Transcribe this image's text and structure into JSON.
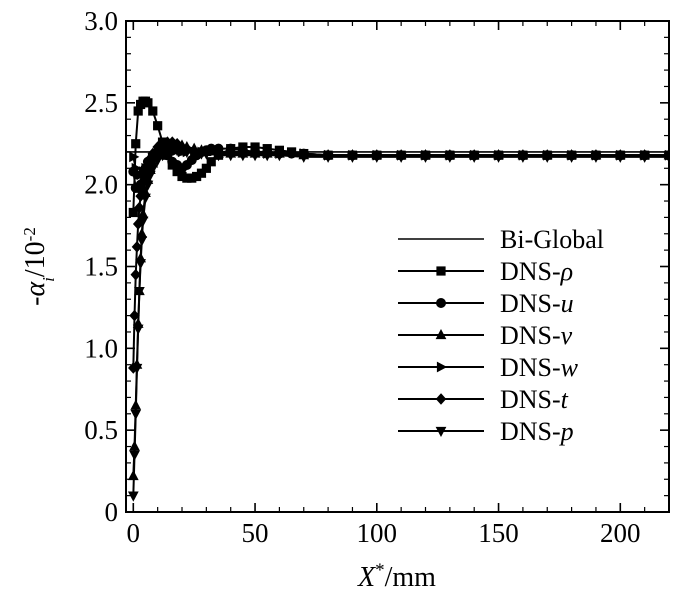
{
  "chart_data": {
    "type": "line",
    "title": "",
    "xlabel": "X*/mm",
    "ylabel": "-αi/10-2",
    "xlabel_parts": {
      "base": "X",
      "sup": "*",
      "rest": "/mm"
    },
    "ylabel_parts": {
      "prefix": "-",
      "base": "α",
      "sub": "i",
      "rest": "/10",
      "sup": "-2"
    },
    "xlim": [
      -3,
      220
    ],
    "ylim": [
      0,
      3.0
    ],
    "x_ticks": [
      0,
      50,
      100,
      150,
      200
    ],
    "x_tick_labels": [
      "0",
      "50",
      "100",
      "150",
      "200"
    ],
    "y_ticks": [
      0,
      0.5,
      1.0,
      1.5,
      2.0,
      2.5,
      3.0
    ],
    "y_tick_labels": [
      "0",
      "0.5",
      "1.0",
      "1.5",
      "2.0",
      "2.5",
      "3.0"
    ],
    "grid": false,
    "legend_position": "right-middle",
    "series": [
      {
        "name": "Bi-Global",
        "name_parts": [
          "Bi-Global",
          ""
        ],
        "marker": "none",
        "x": [
          -3,
          0,
          220
        ],
        "y": [
          2.2,
          2.2,
          2.2
        ]
      },
      {
        "name": "DNS-ρ",
        "name_parts": [
          "DNS-",
          "ρ"
        ],
        "marker": "square",
        "x": [
          0,
          1,
          2,
          3,
          4,
          5,
          6,
          8,
          10,
          12,
          14,
          16,
          18,
          20,
          22,
          24,
          26,
          28,
          30,
          32,
          35,
          40,
          45,
          50,
          55,
          60,
          65,
          70,
          80,
          90,
          100,
          110,
          120,
          130,
          140,
          150,
          160,
          170,
          180,
          190,
          200,
          210,
          220
        ],
        "y": [
          1.83,
          2.25,
          2.45,
          2.49,
          2.51,
          2.51,
          2.5,
          2.45,
          2.36,
          2.26,
          2.18,
          2.12,
          2.08,
          2.05,
          2.04,
          2.04,
          2.05,
          2.07,
          2.1,
          2.14,
          2.18,
          2.22,
          2.23,
          2.23,
          2.22,
          2.21,
          2.2,
          2.19,
          2.18,
          2.18,
          2.18,
          2.18,
          2.18,
          2.18,
          2.18,
          2.18,
          2.18,
          2.18,
          2.18,
          2.18,
          2.18,
          2.18,
          2.18
        ]
      },
      {
        "name": "DNS-u",
        "name_parts": [
          "DNS-",
          "u"
        ],
        "marker": "circle",
        "x": [
          0,
          1,
          2,
          3,
          4,
          5,
          6,
          8,
          10,
          12,
          14,
          16,
          18,
          20,
          22,
          24,
          26,
          28,
          30,
          32,
          35,
          40,
          45,
          50,
          55,
          60,
          65,
          70,
          80,
          90,
          100,
          110,
          120,
          130,
          140,
          150,
          160,
          170,
          180,
          190,
          200,
          210,
          220
        ],
        "y": [
          2.08,
          1.98,
          1.98,
          2.0,
          2.06,
          2.1,
          2.14,
          2.18,
          2.2,
          2.2,
          2.18,
          2.14,
          2.12,
          2.1,
          2.12,
          2.15,
          2.18,
          2.2,
          2.21,
          2.22,
          2.22,
          2.22,
          2.21,
          2.2,
          2.2,
          2.19,
          2.19,
          2.19,
          2.18,
          2.18,
          2.18,
          2.18,
          2.18,
          2.18,
          2.18,
          2.18,
          2.18,
          2.18,
          2.18,
          2.18,
          2.18,
          2.18,
          2.18
        ]
      },
      {
        "name": "DNS-v",
        "name_parts": [
          "DNS-",
          "v"
        ],
        "marker": "triangle-up",
        "x": [
          0,
          0.5,
          1,
          1.5,
          2,
          2.5,
          3,
          3.5,
          4,
          5,
          6,
          7,
          8,
          10,
          12,
          14,
          16,
          18,
          20,
          22,
          25,
          28,
          30,
          35,
          40,
          45,
          50,
          55,
          60,
          70,
          80,
          90,
          100,
          110,
          120,
          130,
          140,
          150,
          160,
          170,
          180,
          190,
          200,
          210,
          220
        ],
        "y": [
          0.22,
          0.4,
          0.65,
          0.9,
          1.15,
          1.35,
          1.55,
          1.7,
          1.82,
          1.95,
          2.03,
          2.09,
          2.13,
          2.18,
          2.2,
          2.22,
          2.23,
          2.24,
          2.24,
          2.23,
          2.22,
          2.21,
          2.2,
          2.19,
          2.19,
          2.19,
          2.19,
          2.19,
          2.19,
          2.18,
          2.18,
          2.18,
          2.18,
          2.18,
          2.18,
          2.18,
          2.18,
          2.18,
          2.18,
          2.18,
          2.18,
          2.18,
          2.18,
          2.18,
          2.18
        ]
      },
      {
        "name": "DNS-w",
        "name_parts": [
          "DNS-",
          "w"
        ],
        "marker": "triangle-right",
        "x": [
          0,
          1,
          2,
          3,
          4,
          5,
          6,
          8,
          10,
          12,
          14,
          16,
          18,
          20,
          22,
          25,
          28,
          30,
          35,
          40,
          45,
          50,
          55,
          60,
          70,
          80,
          90,
          100,
          110,
          120,
          130,
          140,
          150,
          160,
          170,
          180,
          190,
          200,
          210,
          220
        ],
        "y": [
          2.17,
          2.1,
          2.06,
          2.06,
          2.08,
          2.1,
          2.12,
          2.15,
          2.18,
          2.2,
          2.22,
          2.22,
          2.21,
          2.2,
          2.2,
          2.2,
          2.2,
          2.2,
          2.2,
          2.2,
          2.2,
          2.2,
          2.19,
          2.19,
          2.19,
          2.18,
          2.18,
          2.18,
          2.18,
          2.18,
          2.18,
          2.18,
          2.18,
          2.18,
          2.18,
          2.18,
          2.18,
          2.18,
          2.18,
          2.18
        ]
      },
      {
        "name": "DNS-t",
        "name_parts": [
          "DNS-",
          "t"
        ],
        "marker": "diamond",
        "x": [
          0,
          0.5,
          1,
          1.5,
          2,
          2.5,
          3,
          3.5,
          4,
          5,
          6,
          7,
          8,
          10,
          12,
          14,
          16,
          18,
          20,
          22,
          25,
          28,
          30,
          35,
          40,
          45,
          50,
          55,
          60,
          70,
          80,
          90,
          100,
          110,
          120,
          130,
          140,
          150,
          160,
          170,
          180,
          190,
          200,
          210,
          220
        ],
        "y": [
          0.88,
          1.2,
          1.45,
          1.62,
          1.76,
          1.86,
          1.93,
          1.98,
          2.02,
          2.08,
          2.12,
          2.16,
          2.19,
          2.23,
          2.25,
          2.26,
          2.26,
          2.25,
          2.23,
          2.22,
          2.2,
          2.2,
          2.2,
          2.19,
          2.19,
          2.19,
          2.19,
          2.19,
          2.19,
          2.18,
          2.18,
          2.18,
          2.18,
          2.18,
          2.18,
          2.18,
          2.18,
          2.18,
          2.18,
          2.18,
          2.18,
          2.18,
          2.18,
          2.18,
          2.18
        ]
      },
      {
        "name": "DNS-p",
        "name_parts": [
          "DNS-",
          "p"
        ],
        "marker": "triangle-down",
        "x": [
          0,
          0.5,
          1,
          1.5,
          2,
          2.5,
          3,
          3.5,
          4,
          5,
          6,
          7,
          8,
          10,
          12,
          14,
          16,
          18,
          20,
          22,
          25,
          28,
          30,
          35,
          40,
          45,
          50,
          55,
          60,
          70,
          80,
          90,
          100,
          110,
          120,
          130,
          140,
          150,
          160,
          170,
          180,
          190,
          200,
          210,
          220
        ],
        "y": [
          0.1,
          0.35,
          0.6,
          0.88,
          1.12,
          1.35,
          1.52,
          1.66,
          1.78,
          1.92,
          2.0,
          2.06,
          2.1,
          2.15,
          2.18,
          2.2,
          2.21,
          2.21,
          2.21,
          2.2,
          2.19,
          2.19,
          2.19,
          2.18,
          2.18,
          2.18,
          2.18,
          2.18,
          2.18,
          2.17,
          2.17,
          2.17,
          2.17,
          2.17,
          2.17,
          2.17,
          2.17,
          2.17,
          2.17,
          2.17,
          2.17,
          2.17,
          2.17,
          2.17,
          2.17
        ]
      }
    ]
  }
}
